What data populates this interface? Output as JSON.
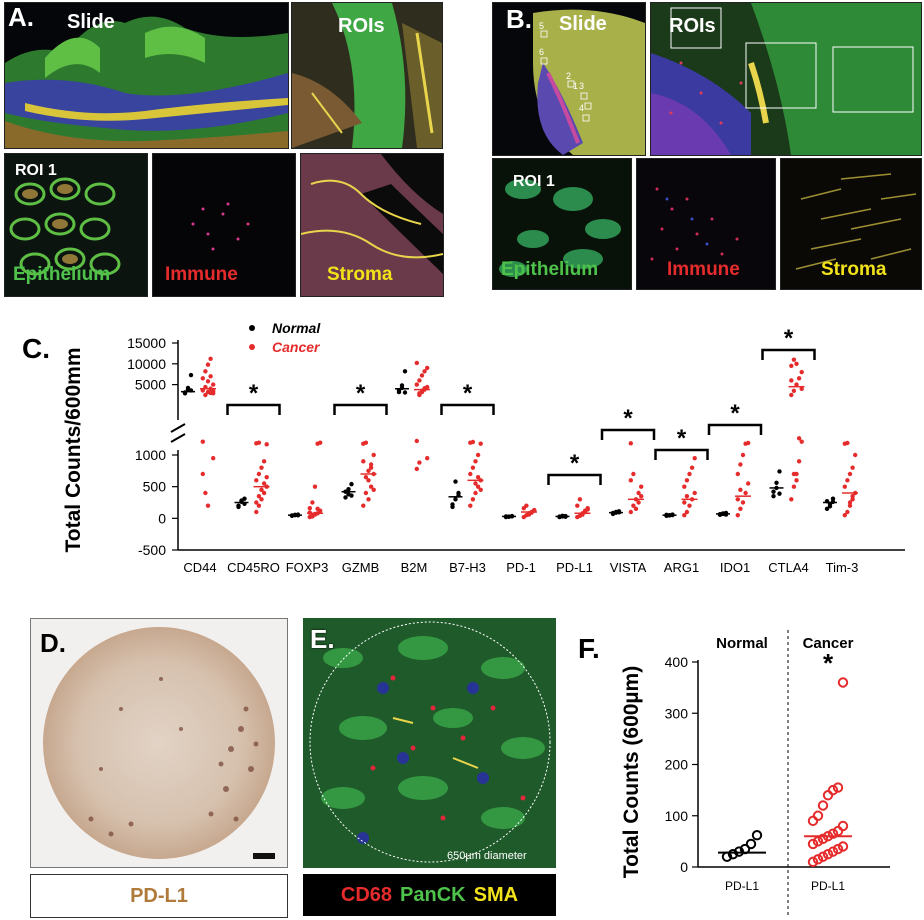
{
  "panelA": {
    "letter": "A.",
    "slide": "Slide",
    "rois": "ROIs",
    "roi1": "ROI 1",
    "epithelium": "Epithelium",
    "immune": "Immune",
    "stroma": "Stroma"
  },
  "panelB": {
    "letter": "B.",
    "slide": "Slide",
    "rois": "ROIs",
    "roi1": "ROI 1",
    "epithelium": "Epithelium",
    "immune": "Immune",
    "stroma": "Stroma",
    "roi_numbers": [
      "5",
      "6",
      "2",
      "1",
      "3",
      "4"
    ]
  },
  "panelD": {
    "letter": "D.",
    "caption": "PD-L1"
  },
  "panelE": {
    "letter": "E.",
    "scale_note": "650µm diameter",
    "c1": "CD68",
    "c2": "PanCK",
    "c3": "SMA"
  },
  "colors": {
    "normal": "#000000",
    "cancer": "#e52b2b",
    "green": "#4ec24a",
    "yellow": "#f2e21a"
  },
  "chart_data": [
    {
      "panel": "C.",
      "type": "scatter",
      "ylabel": "Total Counts/600mm",
      "y_ticks": [
        "15000",
        "10000",
        "5000",
        "1000",
        "500",
        "0",
        "-500"
      ],
      "y_axis": "broken: lower segment -500 to 1000, upper segment 2500 to 15000",
      "legend": {
        "placement": "top-left",
        "entries": [
          "Normal",
          "Cancer"
        ]
      },
      "categories": [
        "CD44",
        "CD45RO",
        "FOXP3",
        "GZMB",
        "B2M",
        "B7-H3",
        "PD-1",
        "PD-L1",
        "VISTA",
        "ARG1",
        "IDO1",
        "CTLA4",
        "Tim-3"
      ],
      "significance": [
        {
          "label": "*",
          "from": "CD45RO",
          "to": "CD45RO"
        },
        {
          "label": "*",
          "from": "GZMB",
          "to": "GZMB"
        },
        {
          "label": "*",
          "from": "B7-H3",
          "to": "B7-H3"
        },
        {
          "label": "*",
          "from": "PD-L1",
          "to": "PD-L1"
        },
        {
          "label": "*",
          "from": "VISTA",
          "to": "VISTA"
        },
        {
          "label": "*",
          "from": "ARG1",
          "to": "ARG1"
        },
        {
          "label": "*",
          "from": "IDO1",
          "to": "IDO1"
        },
        {
          "label": "*",
          "from": "CTLA4",
          "to": "CTLA4"
        }
      ],
      "series": [
        {
          "name": "Normal",
          "mean": [
            3300,
            250,
            50,
            420,
            4000,
            340,
            30,
            30,
            90,
            50,
            70,
            480,
            250
          ],
          "points": [
            [
              3100,
              3800,
              7300,
              2900,
              4200,
              3600
            ],
            [
              200,
              260,
              310,
              180,
              280,
              230
            ],
            [
              40,
              55,
              60,
              45,
              50,
              48
            ],
            [
              330,
              380,
              540,
              420,
              460,
              360
            ],
            [
              3200,
              4200,
              8200,
              3600,
              4800,
              3100
            ],
            [
              180,
              300,
              400,
              220,
              580,
              360
            ],
            [
              20,
              25,
              35,
              30,
              28,
              32
            ],
            [
              20,
              30,
              35,
              28,
              40,
              25
            ],
            [
              70,
              90,
              110,
              85,
              100,
              95
            ],
            [
              40,
              50,
              60,
              55,
              45,
              52
            ],
            [
              55,
              70,
              85,
              65,
              78,
              60
            ],
            [
              350,
              480,
              740,
              420,
              560,
              390
            ],
            [
              150,
              230,
              310,
              270,
              190,
              260
            ]
          ]
        },
        {
          "name": "Cancer",
          "mean": [
            4000,
            500,
            80,
            700,
            3800,
            600,
            100,
            80,
            300,
            300,
            350,
            4500,
            400
          ],
          "points": [
            [
              1500,
              2500,
              3200,
              4000,
              5000,
              6500,
              8200,
              9800,
              11200,
              2900,
              3600,
              4400,
              5800,
              7000,
              950,
              700,
              400,
              200,
              3000,
              3400
            ],
            [
              100,
              200,
              300,
              400,
              500,
              600,
              700,
              800,
              900,
              1100,
              1250,
              1350,
              450,
              550,
              650,
              250,
              350
            ],
            [
              20,
              40,
              60,
              80,
              120,
              160,
              250,
              500,
              1200,
              1350,
              90,
              30,
              70,
              150
            ],
            [
              200,
              400,
              600,
              800,
              1000,
              1200,
              1350,
              300,
              500,
              700,
              900,
              650,
              750,
              850,
              450
            ],
            [
              1600,
              2500,
              3200,
              3800,
              4400,
              5000,
              6000,
              7200,
              8200,
              9000,
              10200,
              2900,
              3500,
              4100,
              950,
              780,
              880
            ],
            [
              200,
              300,
              400,
              500,
              600,
              700,
              800,
              900,
              1000,
              1200,
              1350,
              1450,
              550,
              650,
              450
            ],
            [
              20,
              50,
              80,
              100,
              130,
              160,
              200,
              60,
              90,
              120
            ],
            [
              20,
              40,
              80,
              120,
              160,
              200,
              300,
              60,
              100,
              140
            ],
            [
              100,
              200,
              300,
              400,
              500,
              600,
              700,
              150,
              250,
              350,
              1250
            ],
            [
              50,
              100,
              200,
              300,
              400,
              500,
              600,
              700,
              800,
              950,
              250,
              350
            ],
            [
              50,
              150,
              250,
              400,
              550,
              700,
              850,
              1000,
              1200,
              1300,
              300,
              450
            ],
            [
              300,
              500,
              700,
              900,
              1500,
              2500,
              3500,
              5000,
              6500,
              8000,
              9500,
              11000,
              10000,
              2000,
              4000,
              6000,
              700,
              600
            ],
            [
              50,
              100,
              200,
              300,
              400,
              500,
              600,
              700,
              800,
              1000,
              1200,
              1300,
              250,
              350
            ]
          ]
        }
      ]
    },
    {
      "panel": "F.",
      "type": "scatter",
      "ylabel": "Total Counts (600µm)",
      "ylim": [
        0,
        400
      ],
      "y_ticks": [
        "0",
        "100",
        "200",
        "300",
        "400"
      ],
      "groups": [
        "Normal",
        "Cancer"
      ],
      "categories": [
        "PD-L1",
        "PD-L1"
      ],
      "significance": "*",
      "series": [
        {
          "name": "Normal",
          "mean": 28,
          "values": [
            20,
            25,
            30,
            35,
            45,
            62
          ]
        },
        {
          "name": "Cancer",
          "mean": 60,
          "values": [
            10,
            15,
            20,
            25,
            30,
            35,
            40,
            45,
            50,
            55,
            60,
            65,
            70,
            80,
            90,
            100,
            120,
            140,
            150,
            155,
            360
          ]
        }
      ]
    }
  ]
}
